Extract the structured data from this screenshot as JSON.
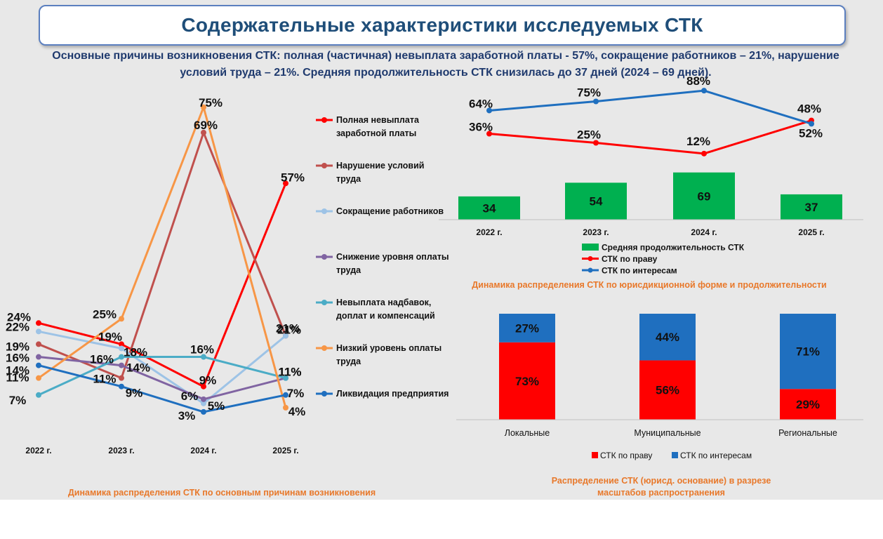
{
  "header": {
    "title": "Содержательные характеристики исследуемых СТК",
    "subtitle_line1": "Основные причины возникновения СТК: полная (частичная) невыплата заработной платы - 57%, сокращение работников – 21%, нарушение",
    "subtitle_line2": "условий труда – 21%.  Средняя продолжительность СТК снизилась до 37 дней (2024 – 69 дней)."
  },
  "chart_data": [
    {
      "type": "line",
      "title": "Динамика распределения СТК по основным причинам возникновения",
      "categories": [
        "2022 г.",
        "2023 г.",
        "2024 г.",
        "2025 г."
      ],
      "ylim": [
        0,
        80
      ],
      "series": [
        {
          "name": "Полная невыплата заработной платы",
          "values": [
            24,
            19,
            9,
            57
          ],
          "color": "#ff0000"
        },
        {
          "name": "Нарушение условий труда",
          "values": [
            19,
            11,
            69,
            21
          ],
          "color": "#c0504d"
        },
        {
          "name": "Сокращение работников",
          "values": [
            22,
            18,
            5,
            21
          ],
          "color": "#9dc3e6"
        },
        {
          "name": "Снижение уровня оплаты труда",
          "values": [
            16,
            14,
            6,
            11
          ],
          "color": "#8064a2"
        },
        {
          "name": "Невыплата надбавок, доплат и компенсаций",
          "values": [
            7,
            16,
            16,
            11
          ],
          "color": "#4bacc6"
        },
        {
          "name": "Низкий уровень оплаты труда",
          "values": [
            11,
            25,
            75,
            4
          ],
          "color": "#f79646"
        },
        {
          "name": "Ликвидация предприятия",
          "values": [
            14,
            9,
            3,
            7
          ],
          "color": "#1f6fbf"
        }
      ]
    },
    {
      "type": "line+bar",
      "title": "Динамика распределения СТК по юрисдикционной форме и продолжительности",
      "categories": [
        "2022 г.",
        "2023 г.",
        "2024 г.",
        "2025 г."
      ],
      "bar_series": {
        "name": "Средняя продолжительность СТК",
        "values": [
          34,
          54,
          69,
          37
        ],
        "color": "#00b050"
      },
      "series": [
        {
          "name": "СТК по праву",
          "values": [
            36,
            25,
            12,
            52
          ],
          "color": "#ff0000"
        },
        {
          "name": "СТК по интересам",
          "values": [
            64,
            75,
            88,
            48
          ],
          "color": "#1f6fbf"
        }
      ]
    },
    {
      "type": "bar",
      "stacked": true,
      "title": "Распределение СТК (юрисд. основание) в разрезе масштабов распространения",
      "categories": [
        "Локальные",
        "Муниципальные",
        "Региональные"
      ],
      "series": [
        {
          "name": "СТК по праву",
          "values": [
            73,
            56,
            29
          ],
          "color": "#ff0000"
        },
        {
          "name": "СТК по интересам",
          "values": [
            27,
            44,
            71
          ],
          "color": "#1f6fbf"
        }
      ]
    }
  ]
}
